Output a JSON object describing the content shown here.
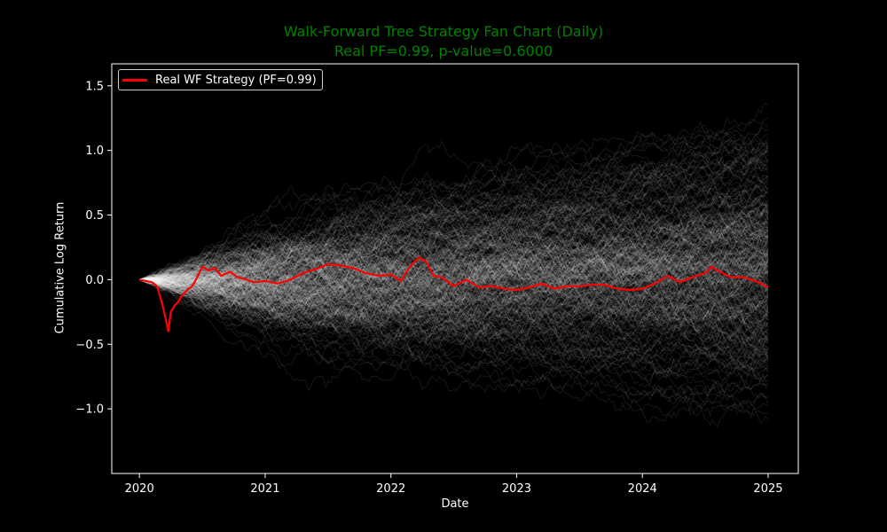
{
  "chart_data": {
    "type": "line",
    "title": "Walk-Forward Tree Strategy Fan Chart (Daily)",
    "subtitle": "Real PF=0.99, p-value=0.6000",
    "xlabel": "Date",
    "ylabel": "Cumulative Log Return",
    "xlim": [
      2019.78,
      2025.24
    ],
    "ylim": [
      -1.5,
      1.67
    ],
    "x_ticks": [
      {
        "value": 2020,
        "label": "2020"
      },
      {
        "value": 2021,
        "label": "2021"
      },
      {
        "value": 2022,
        "label": "2022"
      },
      {
        "value": 2023,
        "label": "2023"
      },
      {
        "value": 2024,
        "label": "2024"
      },
      {
        "value": 2025,
        "label": "2025"
      }
    ],
    "y_ticks": [
      {
        "value": 1.5,
        "label": "1.5"
      },
      {
        "value": 1.0,
        "label": "1.0"
      },
      {
        "value": 0.5,
        "label": "0.5"
      },
      {
        "value": 0.0,
        "label": "0.0"
      },
      {
        "value": -0.5,
        "label": "−0.5"
      },
      {
        "value": -1.0,
        "label": "−1.0"
      }
    ],
    "grid": false,
    "legend_position": "top-left",
    "background": "#000000",
    "colors": {
      "title": "#008000",
      "axes": "#ffffff",
      "real_series": "#ff0000",
      "simulated_paths": "#ffffff"
    },
    "simulated_paths": {
      "description_visible": "Thousands of faint white random-walk paths starting at 0 in 2020 and fanning out to about +1.5 / −1.3 by 2025",
      "start_x": 2020.0,
      "end_x": 2025.0,
      "envelope_upper": [
        [
          2020.0,
          0.0
        ],
        [
          2021.0,
          0.55
        ],
        [
          2022.0,
          0.85
        ],
        [
          2023.0,
          1.05
        ],
        [
          2024.0,
          1.25
        ],
        [
          2025.0,
          1.52
        ]
      ],
      "envelope_lower": [
        [
          2020.0,
          0.0
        ],
        [
          2021.0,
          -0.6
        ],
        [
          2022.0,
          -0.85
        ],
        [
          2023.0,
          -1.0
        ],
        [
          2024.0,
          -1.15
        ],
        [
          2025.0,
          -1.32
        ]
      ]
    },
    "series": [
      {
        "name": "Real WF Strategy (PF=0.99)",
        "x": [
          2020.0,
          2020.05,
          2020.1,
          2020.14,
          2020.17,
          2020.19,
          2020.21,
          2020.23,
          2020.25,
          2020.28,
          2020.31,
          2020.34,
          2020.38,
          2020.42,
          2020.46,
          2020.5,
          2020.55,
          2020.6,
          2020.65,
          2020.72,
          2020.78,
          2020.85,
          2020.92,
          2021.0,
          2021.1,
          2021.2,
          2021.3,
          2021.4,
          2021.5,
          2021.6,
          2021.7,
          2021.8,
          2021.9,
          2022.0,
          2022.08,
          2022.15,
          2022.22,
          2022.28,
          2022.34,
          2022.4,
          2022.5,
          2022.6,
          2022.7,
          2022.8,
          2022.9,
          2023.0,
          2023.1,
          2023.2,
          2023.3,
          2023.4,
          2023.5,
          2023.6,
          2023.7,
          2023.8,
          2023.9,
          2024.0,
          2024.1,
          2024.2,
          2024.3,
          2024.4,
          2024.5,
          2024.55,
          2024.6,
          2024.7,
          2024.8,
          2024.9,
          2025.0
        ],
        "values": [
          0.0,
          -0.01,
          -0.02,
          -0.05,
          -0.15,
          -0.22,
          -0.31,
          -0.4,
          -0.25,
          -0.2,
          -0.17,
          -0.12,
          -0.08,
          -0.05,
          0.02,
          0.1,
          0.07,
          0.09,
          0.03,
          0.06,
          0.02,
          0.0,
          -0.02,
          -0.01,
          -0.03,
          0.0,
          0.05,
          0.08,
          0.12,
          0.11,
          0.09,
          0.05,
          0.03,
          0.04,
          -0.01,
          0.1,
          0.17,
          0.14,
          0.03,
          0.02,
          -0.05,
          0.0,
          -0.06,
          -0.05,
          -0.07,
          -0.08,
          -0.06,
          -0.03,
          -0.07,
          -0.05,
          -0.05,
          -0.04,
          -0.04,
          -0.07,
          -0.08,
          -0.07,
          -0.03,
          0.03,
          -0.02,
          0.02,
          0.05,
          0.1,
          0.07,
          0.02,
          0.02,
          -0.01,
          -0.06
        ]
      }
    ]
  }
}
